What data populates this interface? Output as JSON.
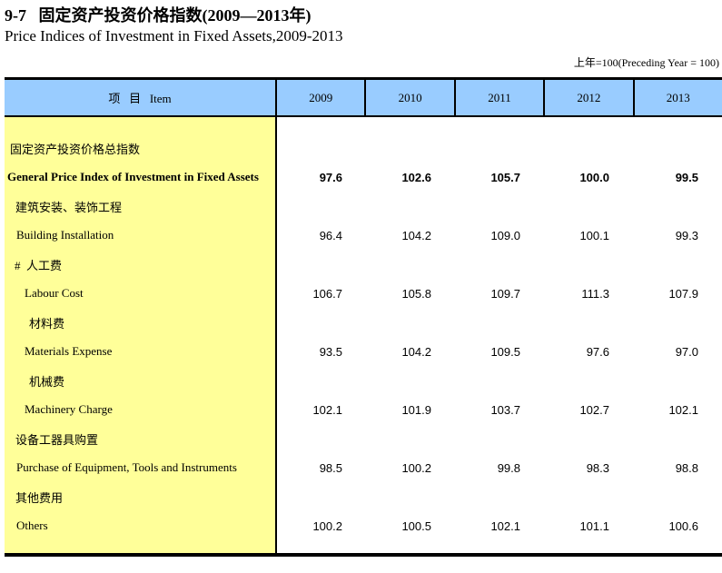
{
  "page": {
    "title_cn": "9-7   固定资产投资价格指数(2009—2013年)",
    "title_en": "Price Indices of Investment in Fixed Assets,2009-2013",
    "unit_note": "上年=100(Preceding Year = 100)"
  },
  "colors": {
    "header_bg": "#99CCFF",
    "item_column_bg": "#FFFF99",
    "border": "#000000"
  },
  "table": {
    "item_header": "项   目   Item",
    "year_headers": [
      "2009",
      "2010",
      "2011",
      "2012",
      "2013"
    ],
    "rows": [
      {
        "label": "固定资产投资价格总指数",
        "lang": "cn",
        "indent": 6,
        "bold": false,
        "values": []
      },
      {
        "label": "General Price Index of Investment in Fixed Assets",
        "lang": "en",
        "indent": 3,
        "bold": true,
        "values": [
          "97.6",
          "102.6",
          "105.7",
          "100.0",
          "99.5"
        ]
      },
      {
        "label": "建筑安装、装饰工程",
        "lang": "cn",
        "indent": 12,
        "bold": false,
        "values": []
      },
      {
        "label": "Building Installation",
        "lang": "en",
        "indent": 13,
        "bold": false,
        "values": [
          "96.4",
          "104.2",
          "109.0",
          "100.1",
          "99.3"
        ]
      },
      {
        "label": "#  人工费",
        "lang": "cn",
        "indent": 11,
        "bold": false,
        "values": []
      },
      {
        "label": "Labour Cost",
        "lang": "en",
        "indent": 22,
        "bold": false,
        "values": [
          "106.7",
          "105.8",
          "109.7",
          "111.3",
          "107.9"
        ]
      },
      {
        "label": "材料费",
        "lang": "cn",
        "indent": 27,
        "bold": false,
        "values": []
      },
      {
        "label": "Materials Expense",
        "lang": "en",
        "indent": 22,
        "bold": false,
        "values": [
          "93.5",
          "104.2",
          "109.5",
          "97.6",
          "97.0"
        ]
      },
      {
        "label": "机械费",
        "lang": "cn",
        "indent": 27,
        "bold": false,
        "values": []
      },
      {
        "label": "Machinery Charge",
        "lang": "en",
        "indent": 22,
        "bold": false,
        "values": [
          "102.1",
          "101.9",
          "103.7",
          "102.7",
          "102.1"
        ]
      },
      {
        "label": "设备工器具购置",
        "lang": "cn",
        "indent": 12,
        "bold": false,
        "values": []
      },
      {
        "label": "Purchase of Equipment, Tools and Instruments",
        "lang": "en",
        "indent": 13,
        "bold": false,
        "values": [
          "98.5",
          "100.2",
          "99.8",
          "98.3",
          "98.8"
        ]
      },
      {
        "label": "其他费用",
        "lang": "cn",
        "indent": 12,
        "bold": false,
        "values": []
      },
      {
        "label": "Others",
        "lang": "en",
        "indent": 13,
        "bold": false,
        "values": [
          "100.2",
          "100.5",
          "102.1",
          "101.1",
          "100.6"
        ]
      }
    ]
  }
}
